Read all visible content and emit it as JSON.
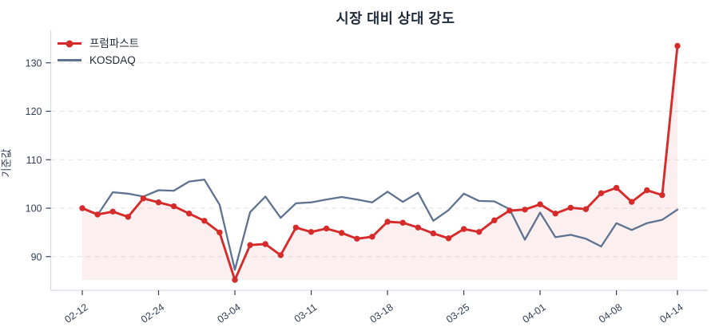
{
  "title": "시장 대비 상대 강도",
  "colors": {
    "series1": "#d62b2b",
    "series2": "#5d7390",
    "series1_fill": "rgba(214,43,43,0.075)",
    "grid": "#e2e2e2",
    "axis_border": "#d8dde8",
    "tick_text": "#333f54",
    "title_text": "#1e2a3a"
  },
  "chart_data": {
    "type": "line",
    "title": "시장 대비 상대 강도",
    "xlabel": "",
    "ylabel": "기준값",
    "ylim": [
      84,
      136
    ],
    "yticks": [
      90,
      100,
      110,
      120,
      130
    ],
    "grid": "dashed-horizontal",
    "legend_position": "top-left",
    "xtick_labels": [
      "02-12",
      "02-24",
      "03-04",
      "03-11",
      "03-18",
      "03-25",
      "04-01",
      "04-08",
      "04-14"
    ],
    "xtick_positions": [
      0,
      5,
      10,
      15,
      20,
      25,
      30,
      35,
      39
    ],
    "n_points": 40,
    "series": [
      {
        "name": "프럼파스트",
        "color": "#d62b2b",
        "marker": "circle",
        "fill_to_min": true,
        "values": [
          100.0,
          98.7,
          99.3,
          98.2,
          102.0,
          101.2,
          100.4,
          98.9,
          97.4,
          95.0,
          85.2,
          92.4,
          92.6,
          90.3,
          96.0,
          95.1,
          95.8,
          94.9,
          93.7,
          94.1,
          97.2,
          97.0,
          96.0,
          94.8,
          93.8,
          95.7,
          95.1,
          97.5,
          99.5,
          99.7,
          100.8,
          98.9,
          100.1,
          99.8,
          103.1,
          104.2,
          101.3,
          103.7,
          102.7,
          133.5
        ]
      },
      {
        "name": "KOSDAQ",
        "color": "#5d7390",
        "marker": "none",
        "fill_to_min": false,
        "values": [
          100.0,
          98.6,
          103.3,
          103.0,
          102.4,
          103.7,
          103.6,
          105.5,
          105.9,
          100.7,
          87.3,
          99.2,
          102.4,
          98.0,
          101.0,
          101.2,
          101.8,
          102.3,
          101.8,
          101.2,
          103.4,
          101.3,
          103.2,
          97.4,
          99.6,
          103.0,
          101.5,
          101.4,
          99.8,
          93.5,
          99.1,
          94.0,
          94.5,
          93.7,
          92.1,
          96.9,
          95.5,
          96.9,
          97.6,
          99.7
        ]
      }
    ]
  }
}
